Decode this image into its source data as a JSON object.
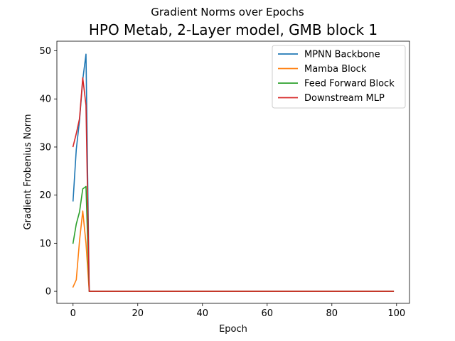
{
  "suptitle": "Gradient Norms over Epochs",
  "chart_data": {
    "type": "line",
    "title": "HPO Metab, 2-Layer model, GMB block 1",
    "xlabel": "Epoch",
    "ylabel": "Gradient Frobenius Norm",
    "xlim": [
      -5,
      104
    ],
    "ylim": [
      -2.5,
      52
    ],
    "xticks": [
      0,
      20,
      40,
      60,
      80,
      100
    ],
    "yticks": [
      0,
      10,
      20,
      30,
      40,
      50
    ],
    "grid": false,
    "legend_position": "top-right",
    "series": [
      {
        "name": "MPNN Backbone",
        "color": "#1f77b4",
        "points": [
          [
            0,
            18.8
          ],
          [
            1,
            29.5
          ],
          [
            2,
            35.5
          ],
          [
            3,
            44.0
          ],
          [
            4,
            49.3
          ],
          [
            5,
            0.0
          ],
          [
            99,
            0.0
          ]
        ]
      },
      {
        "name": "Mamba Block",
        "color": "#ff7f0e",
        "points": [
          [
            0,
            0.9
          ],
          [
            1,
            2.4
          ],
          [
            2,
            10.5
          ],
          [
            3,
            16.7
          ],
          [
            4,
            10.0
          ],
          [
            5,
            0.0
          ],
          [
            99,
            0.0
          ]
        ]
      },
      {
        "name": "Feed Forward Block",
        "color": "#2ca02c",
        "points": [
          [
            0,
            10.0
          ],
          [
            1,
            14.0
          ],
          [
            2,
            16.5
          ],
          [
            3,
            21.3
          ],
          [
            4,
            21.8
          ],
          [
            5,
            0.0
          ],
          [
            99,
            0.0
          ]
        ]
      },
      {
        "name": "Downstream MLP",
        "color": "#d62728",
        "points": [
          [
            0,
            30.1
          ],
          [
            1,
            32.8
          ],
          [
            2,
            35.9
          ],
          [
            3,
            44.4
          ],
          [
            4,
            38.7
          ],
          [
            5,
            0.0
          ],
          [
            99,
            0.0
          ]
        ]
      }
    ]
  }
}
